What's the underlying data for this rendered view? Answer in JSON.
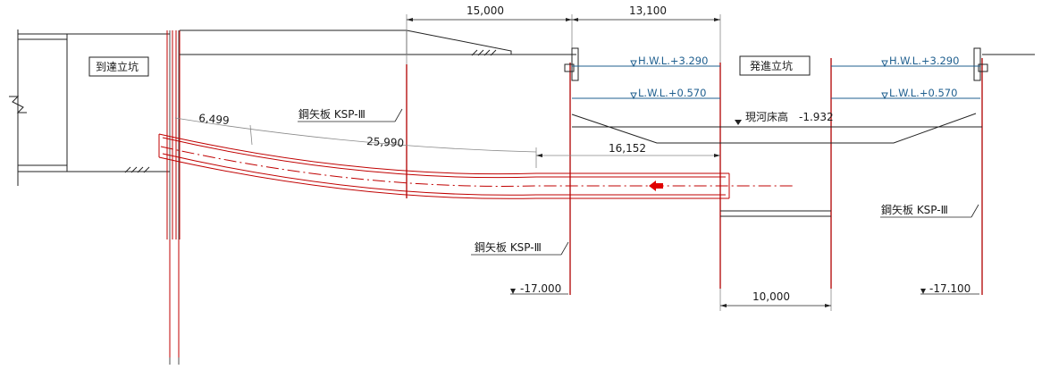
{
  "labels": {
    "arrival_shaft": "到達立坑",
    "launch_shaft": "発進立坑",
    "sheet_pile_1": "鋼矢板 KSP-Ⅲ",
    "sheet_pile_2": "鋼矢板 KSP-Ⅲ",
    "sheet_pile_3": "鋼矢板 KSP-Ⅲ",
    "hwl_1": "H.W.L.+3.290",
    "lwl_1": "L.W.L.+0.570",
    "hwl_2": "H.W.L.+3.290",
    "lwl_2": "L.W.L.+0.570",
    "riverbed": "現河床高　-1.932",
    "elev_left": "-17.000",
    "elev_right": "-17.100"
  },
  "dimensions": {
    "d_15000": "15,000",
    "d_13100": "13,100",
    "d_6499": "6,499",
    "d_25990": "25,990",
    "d_16152": "16,152",
    "d_10000": "10,000"
  },
  "colors": {
    "line": "#222222",
    "pipe": "#c00000",
    "water": "#1f5f8f",
    "arrow": "#e00000"
  }
}
